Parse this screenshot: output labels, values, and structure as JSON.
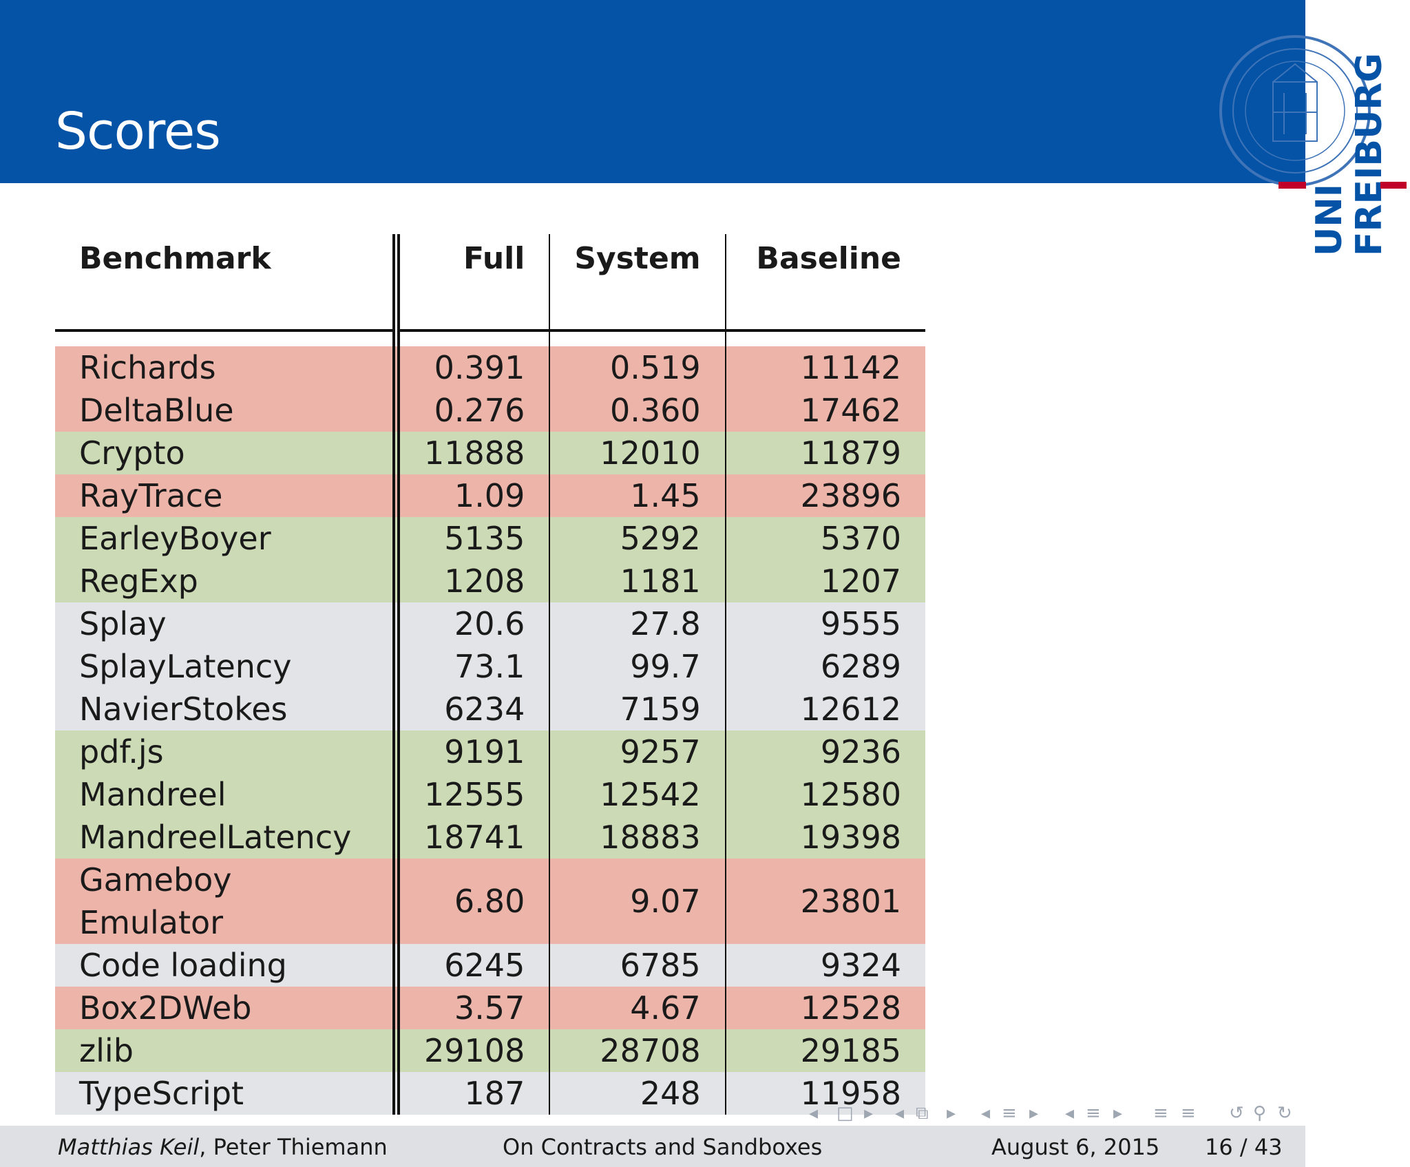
{
  "slide": {
    "title": "Scores"
  },
  "logo": {
    "line1": "UNI",
    "line2": "FREIBURG"
  },
  "colors": {
    "header": "#0453a6",
    "slower": "#edb4a9",
    "similar": "#ccdbb6",
    "neutral": "#e3e4e7",
    "logo_accent": "#c1002a"
  },
  "table": {
    "headers": {
      "benchmark": "Benchmark",
      "full": "Full",
      "system": "System",
      "baseline": "Baseline"
    },
    "rows": [
      {
        "name": "Richards",
        "full": "0.391",
        "system": "0.519",
        "baseline": "11142",
        "tone": "red"
      },
      {
        "name": "DeltaBlue",
        "full": "0.276",
        "system": "0.360",
        "baseline": "17462",
        "tone": "red"
      },
      {
        "name": "Crypto",
        "full": "11888",
        "system": "12010",
        "baseline": "11879",
        "tone": "green"
      },
      {
        "name": "RayTrace",
        "full": "1.09",
        "system": "1.45",
        "baseline": "23896",
        "tone": "red"
      },
      {
        "name": "EarleyBoyer",
        "full": "5135",
        "system": "5292",
        "baseline": "5370",
        "tone": "green"
      },
      {
        "name": "RegExp",
        "full": "1208",
        "system": "1181",
        "baseline": "1207",
        "tone": "green"
      },
      {
        "name": "Splay",
        "full": "20.6",
        "system": "27.8",
        "baseline": "9555",
        "tone": "grey"
      },
      {
        "name": "SplayLatency",
        "full": "73.1",
        "system": "99.7",
        "baseline": "6289",
        "tone": "grey"
      },
      {
        "name": "NavierStokes",
        "full": "6234",
        "system": "7159",
        "baseline": "12612",
        "tone": "grey"
      },
      {
        "name": "pdf.js",
        "full": "9191",
        "system": "9257",
        "baseline": "9236",
        "tone": "green"
      },
      {
        "name": "Mandreel",
        "full": "12555",
        "system": "12542",
        "baseline": "12580",
        "tone": "green"
      },
      {
        "name": "MandreelLatency",
        "full": "18741",
        "system": "18883",
        "baseline": "19398",
        "tone": "green"
      },
      {
        "name": "Gameboy Emulator",
        "full": "6.80",
        "system": "9.07",
        "baseline": "23801",
        "tone": "red"
      },
      {
        "name": "Code loading",
        "full": "6245",
        "system": "6785",
        "baseline": "9324",
        "tone": "grey"
      },
      {
        "name": "Box2DWeb",
        "full": "3.57",
        "system": "4.67",
        "baseline": "12528",
        "tone": "red"
      },
      {
        "name": "zlib",
        "full": "29108",
        "system": "28708",
        "baseline": "29185",
        "tone": "green"
      },
      {
        "name": "TypeScript",
        "full": "187",
        "system": "248",
        "baseline": "11958",
        "tone": "grey"
      }
    ]
  },
  "navigation": {
    "icons": [
      "nav-prev-slide-icon",
      "nav-slide-icon",
      "nav-next-slide-icon",
      "nav-prev-frame-icon",
      "nav-frame-icon",
      "nav-next-frame-icon",
      "nav-prev-subsection-icon",
      "nav-subsection-icon",
      "nav-next-subsection-icon",
      "nav-prev-section-icon",
      "nav-section-icon",
      "nav-next-section-icon",
      "nav-outline-icon",
      "nav-appendix-icon",
      "nav-back-icon",
      "nav-search-icon",
      "nav-forward-icon"
    ]
  },
  "footer": {
    "author_italic": "Matthias Keil",
    "author_rest": ", Peter Thiemann",
    "talk_title": "On Contracts and Sandboxes",
    "date": "August 6, 2015",
    "page": "16 / 43"
  }
}
